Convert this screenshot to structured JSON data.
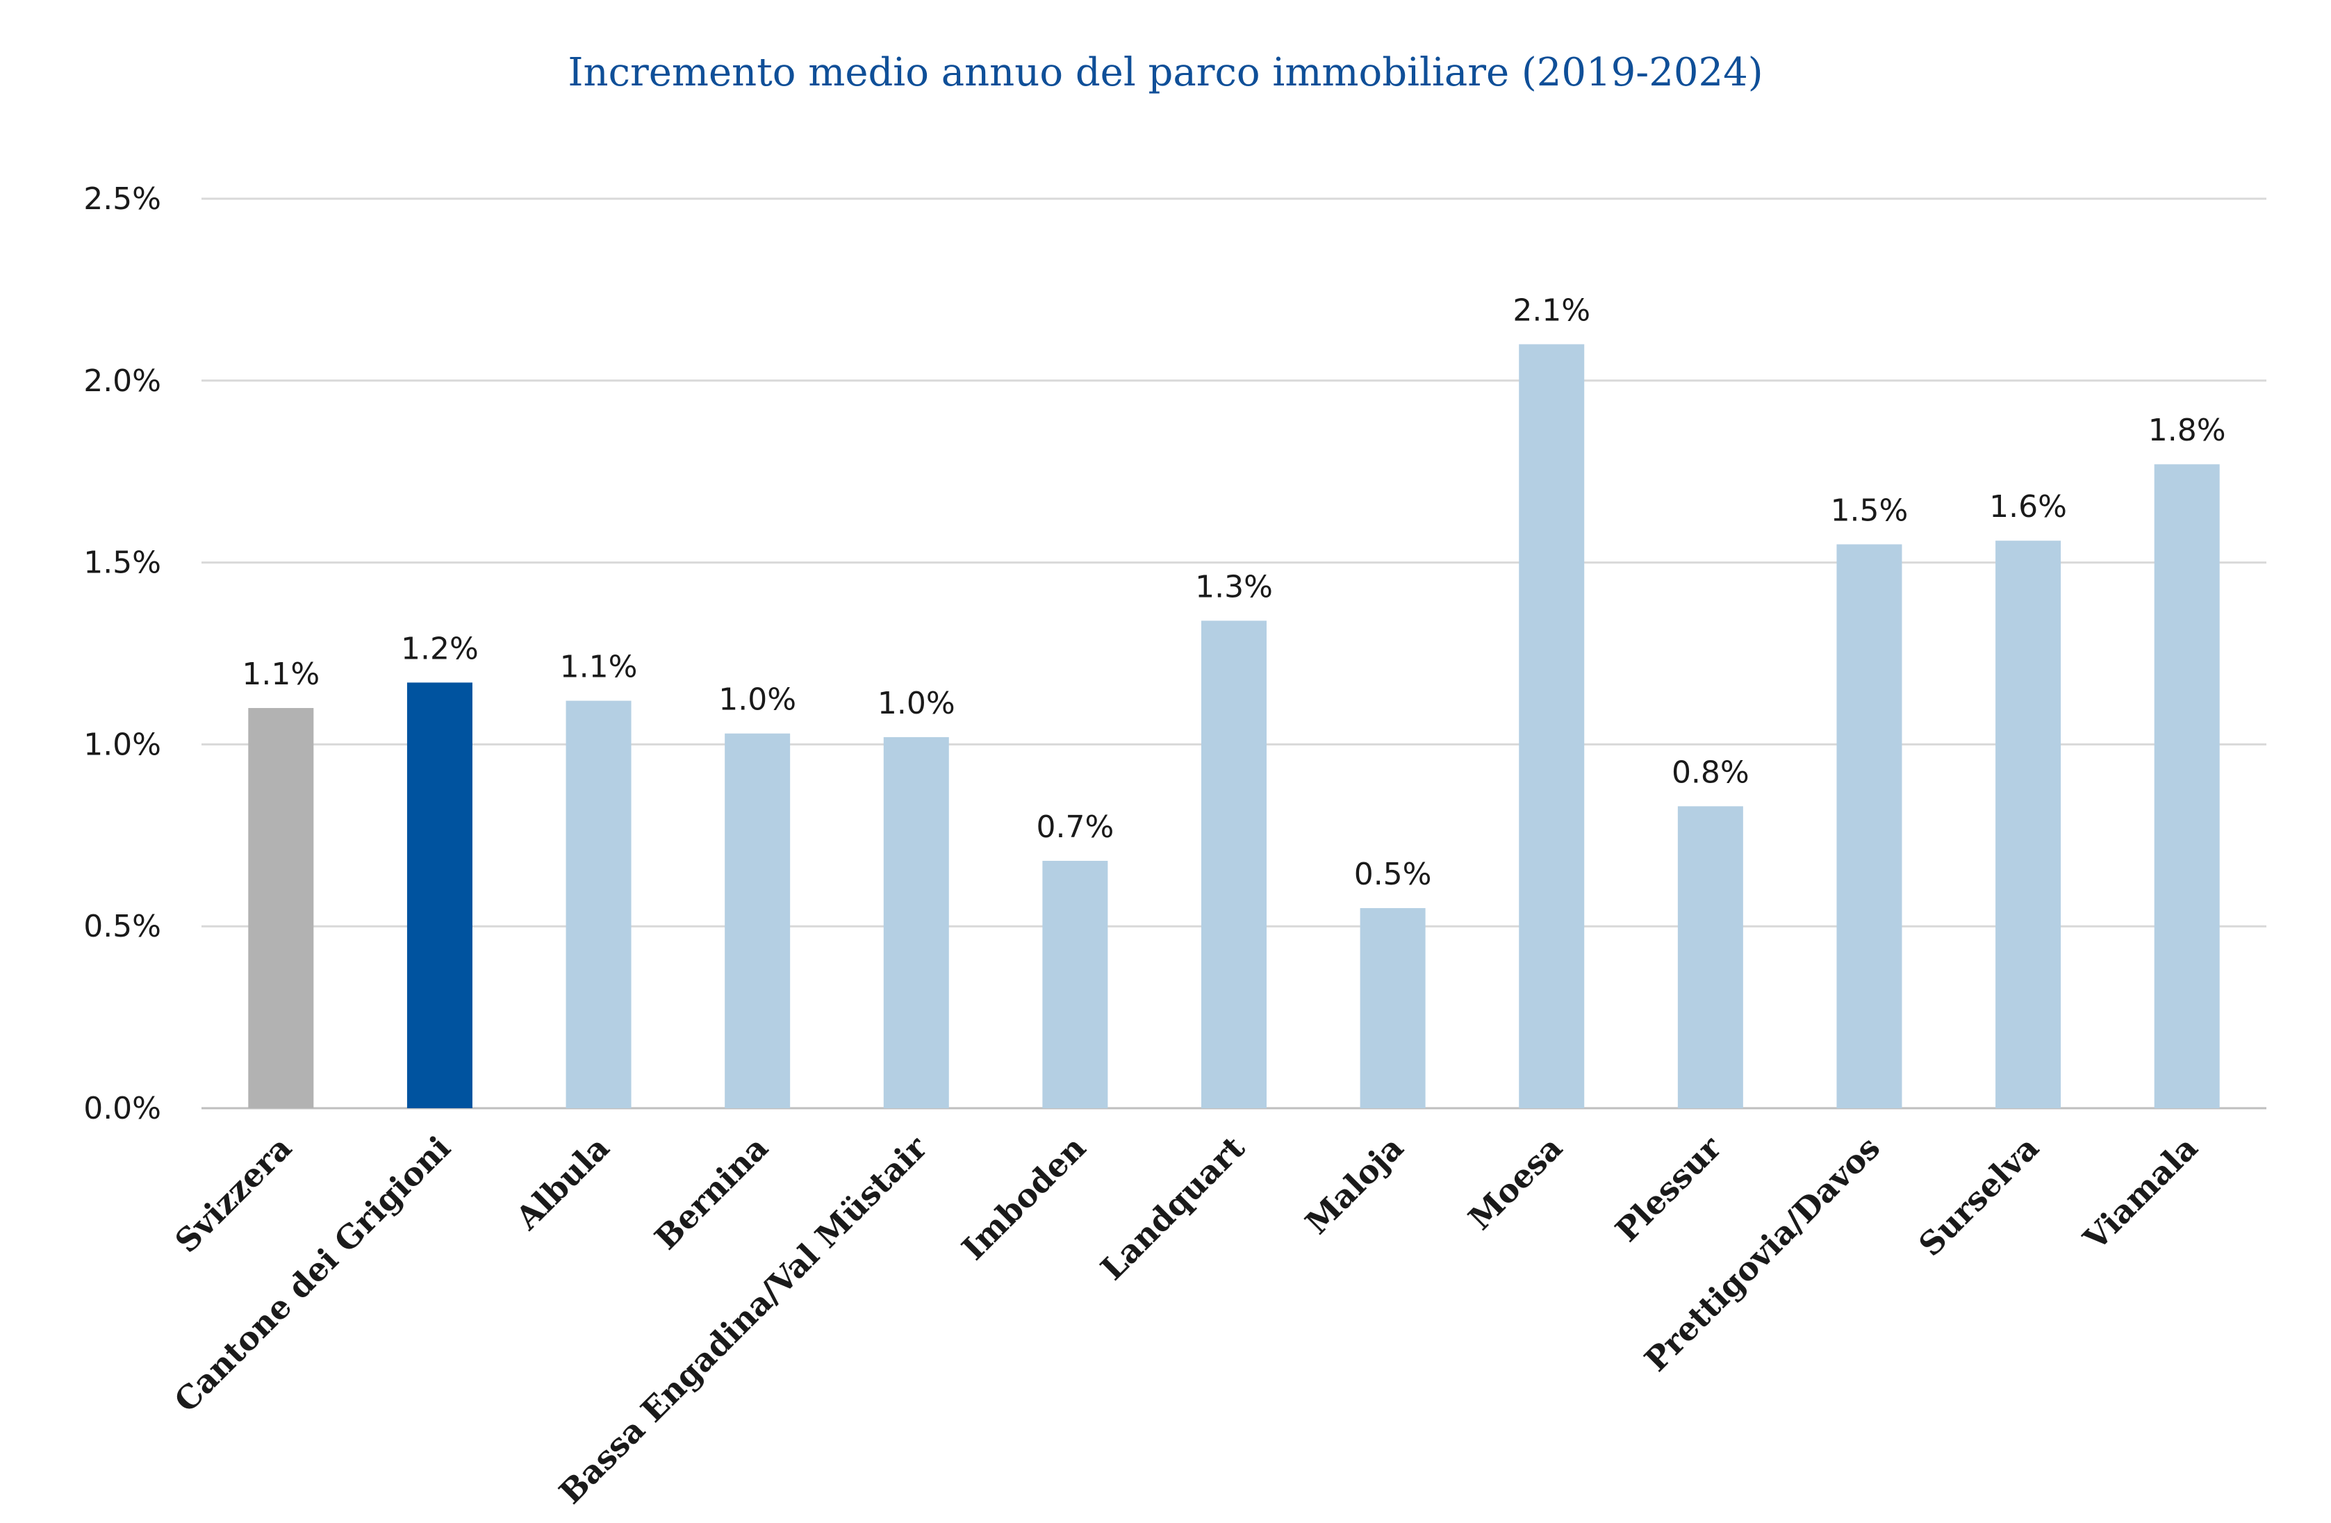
{
  "chart_data": {
    "type": "bar",
    "title": "Incremento medio annuo del parco immobiliare (2019-2024)",
    "xlabel": "",
    "ylabel": "",
    "ylim": [
      0,
      2.5
    ],
    "yticks": [
      0.0,
      0.5,
      1.0,
      1.5,
      2.0,
      2.5
    ],
    "ytick_labels": [
      "0.0%",
      "0.5%",
      "1.0%",
      "1.5%",
      "2.0%",
      "2.5%"
    ],
    "grid": true,
    "legend": "none",
    "categories": [
      "Svizzera",
      "Cantone dei Grigioni",
      "Albula",
      "Bernina",
      "Bassa Engadina/Val Müstair",
      "Imboden",
      "Landquart",
      "Maloja",
      "Moesa",
      "Plessur",
      "Prettigovia/Davos",
      "Surselva",
      "Viamala"
    ],
    "values": [
      1.1,
      1.17,
      1.12,
      1.03,
      1.02,
      0.68,
      1.34,
      0.55,
      2.1,
      0.83,
      1.55,
      1.56,
      1.77
    ],
    "data_labels": [
      "1.1%",
      "1.2%",
      "1.1%",
      "1.0%",
      "1.0%",
      "0.7%",
      "1.3%",
      "0.5%",
      "2.1%",
      "0.8%",
      "1.5%",
      "1.6%",
      "1.8%"
    ],
    "colors": [
      "#b2b2b2",
      "#00539f",
      "#b4cfe3",
      "#b4cfe3",
      "#b4cfe3",
      "#b4cfe3",
      "#b4cfe3",
      "#b4cfe3",
      "#b4cfe3",
      "#b4cfe3",
      "#b4cfe3",
      "#b4cfe3",
      "#b4cfe3"
    ]
  },
  "colors": {
    "title": "#0f4f98",
    "grid": "#d9d9d9",
    "text": "#1a1a1a"
  }
}
